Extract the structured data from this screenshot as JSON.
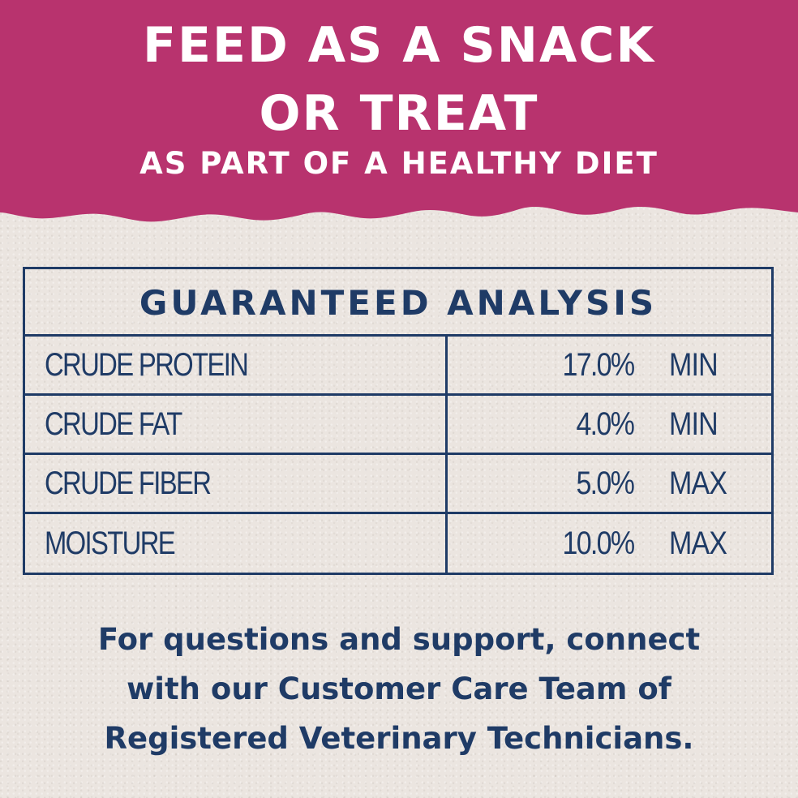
{
  "banner": {
    "line1": "FEED AS A SNACK",
    "line2": "OR TREAT",
    "line3": "AS PART OF A HEALTHY DIET",
    "color": "#b8336e"
  },
  "analysis": {
    "title": "GUARANTEED ANALYSIS",
    "rows": [
      {
        "name": "CRUDE PROTEIN",
        "value": "17.0%",
        "qualifier": "MIN"
      },
      {
        "name": "CRUDE FAT",
        "value": "4.0%",
        "qualifier": "MIN"
      },
      {
        "name": "CRUDE FIBER",
        "value": "5.0%",
        "qualifier": "MAX"
      },
      {
        "name": "MOISTURE",
        "value": "10.0%",
        "qualifier": "MAX"
      }
    ],
    "color": "#1f3b66"
  },
  "support": {
    "line1": "For questions and support, connect",
    "line2": "with our Customer Care Team of",
    "line3": "Registered Veterinary Technicians."
  }
}
